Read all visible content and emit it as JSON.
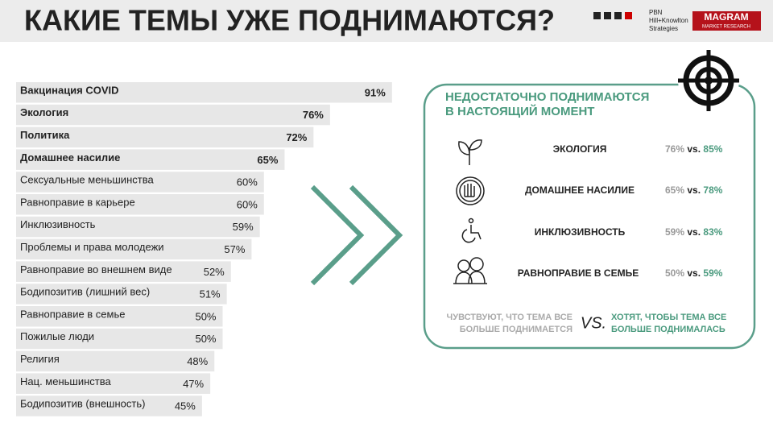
{
  "header": {
    "title": "КАКИЕ ТЕМЫ УЖЕ ПОДНИМАЮТСЯ?",
    "logo1": [
      "PBN",
      "Hill+Knowlton",
      "Strategies"
    ],
    "logo2": [
      "MAGRAM",
      "MARKET RESEARCH"
    ]
  },
  "chart_data": {
    "type": "bar",
    "orientation": "horizontal",
    "categories": [
      "Вакцинация COVID",
      "Экология",
      "Политика",
      "Домашнее насилие",
      "Сексуальные меньшинства",
      "Равноправие в карьере",
      "Инклюзивность",
      "Проблемы и права молодежи",
      "Равноправие во внешнем виде",
      "Бодипозитив  (лишний вес)",
      "Равноправие в семье",
      "Пожилые люди",
      "Религия",
      "Нац. меньшинства",
      "Бодипозитив (внешность)"
    ],
    "values": [
      91,
      76,
      72,
      65,
      60,
      60,
      59,
      57,
      52,
      51,
      50,
      50,
      48,
      47,
      45
    ],
    "value_labels": [
      "91%",
      "76%",
      "72%",
      "65%",
      "60%",
      "60%",
      "59%",
      "57%",
      "52%",
      "51%",
      "50%",
      "50%",
      "48%",
      "47%",
      "45%"
    ],
    "color": "#e7e7e7"
  },
  "panel": {
    "heading": [
      "НЕДОСТАТОЧНО ПОДНИМАЮТСЯ",
      "В НАСТОЯЩИЙ МОМЕНТ"
    ],
    "items": [
      {
        "label": "ЭКОЛОГИЯ",
        "now": "76%",
        "vs": "vs.",
        "want": "85%"
      },
      {
        "label": "ДОМАШНЕЕ НАСИЛИЕ",
        "now": "65%",
        "vs": "vs.",
        "want": "78%"
      },
      {
        "label": "ИНКЛЮЗИВНОСТЬ",
        "now": "59%",
        "vs": "vs.",
        "want": "83%"
      },
      {
        "label": "РАВНОПРАВИЕ В СЕМЬЕ",
        "now": "50%",
        "vs": "vs.",
        "want": "59%"
      }
    ],
    "legend": {
      "left": [
        "ЧУВСТВУЮТ, ЧТО ТЕМА ВСЕ",
        "БОЛЬШЕ ПОДНИМАЕТСЯ"
      ],
      "vs": "VS.",
      "right": [
        "ХОТЯТ, ЧТОБЫ ТЕМА ВСЕ",
        "БОЛЬШЕ ПОДНИМАЛАСЬ"
      ]
    }
  }
}
